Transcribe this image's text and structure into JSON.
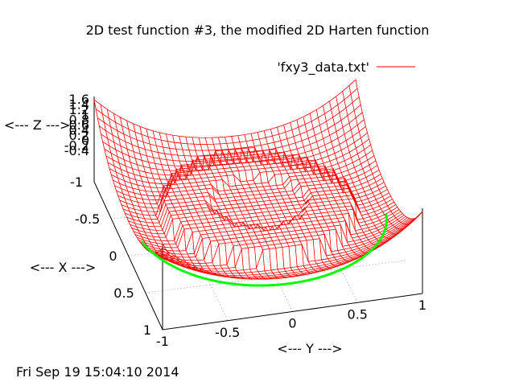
{
  "chart_data": {
    "type": "surface",
    "title": "2D test function #3, the modified 2D Harten function",
    "xlabel": "<--- X --->",
    "ylabel": "<--- Y --->",
    "zlabel": "<--- Z --->",
    "xlim": [
      -1,
      1
    ],
    "ylim": [
      -1,
      1
    ],
    "zlim": [
      -0.4,
      1.6
    ],
    "x_ticks": [
      "-1",
      "-0.5",
      "0",
      "0.5",
      "1"
    ],
    "y_ticks": [
      "-1",
      "-0.5",
      "0",
      "0.5",
      "1"
    ],
    "z_ticks": [
      "1.6",
      "1.4",
      "1.2",
      "1",
      "0.8",
      "0.6",
      "0.4",
      "0.2",
      "0",
      "-0.2",
      "-0.4"
    ],
    "grid": true,
    "legend_position": "top-right",
    "series": [
      {
        "name": "'fxy3_data.txt'",
        "color": "#ff0000",
        "underside_color": "#00ff00"
      }
    ],
    "footer": "Fri Sep 19 15:04:10 2014"
  }
}
